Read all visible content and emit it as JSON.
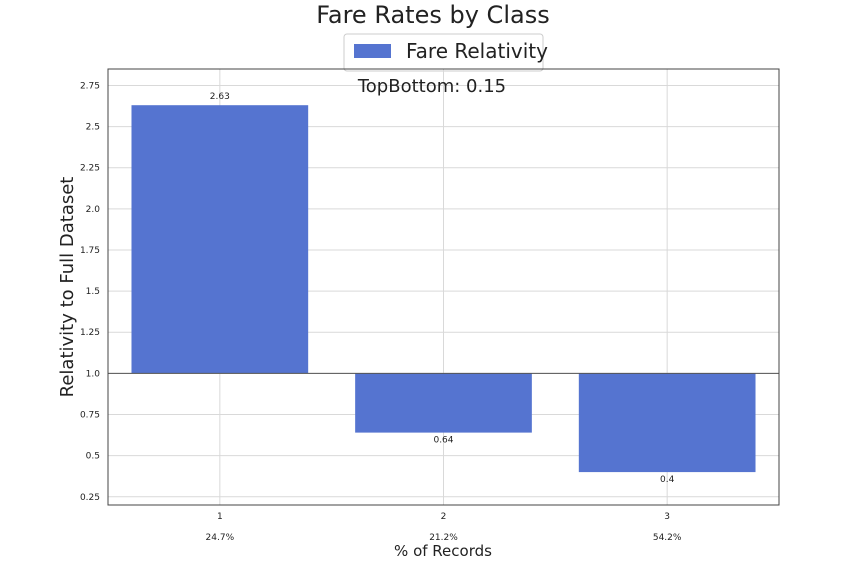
{
  "chart_data": {
    "type": "bar",
    "title": "Fare Rates by Class",
    "annotation": "TopBottom: 0.15",
    "xlabel": "% of Records",
    "ylabel": "Relativity to Full Dataset",
    "baseline": 1.0,
    "ylim": [
      0.2,
      2.85
    ],
    "yticks": [
      0.25,
      0.5,
      0.75,
      1.0,
      1.25,
      1.5,
      1.75,
      2.0,
      2.25,
      2.5,
      2.75
    ],
    "ytick_labels": [
      "0.25",
      "0.5",
      "0.75",
      "1.0",
      "1.25",
      "1.5",
      "1.75",
      "2.0",
      "2.25",
      "2.5",
      "2.75"
    ],
    "categories": [
      "1",
      "2",
      "3"
    ],
    "category_sublabels": [
      "24.7%",
      "21.2%",
      "54.2%"
    ],
    "series": [
      {
        "name": "Fare Relativity",
        "color": "#5574d0",
        "values": [
          2.63,
          0.64,
          0.4
        ],
        "value_labels": [
          "2.63",
          "0.64",
          "0.4"
        ]
      }
    ],
    "legend": {
      "placement": "top-center"
    },
    "grid": true
  }
}
